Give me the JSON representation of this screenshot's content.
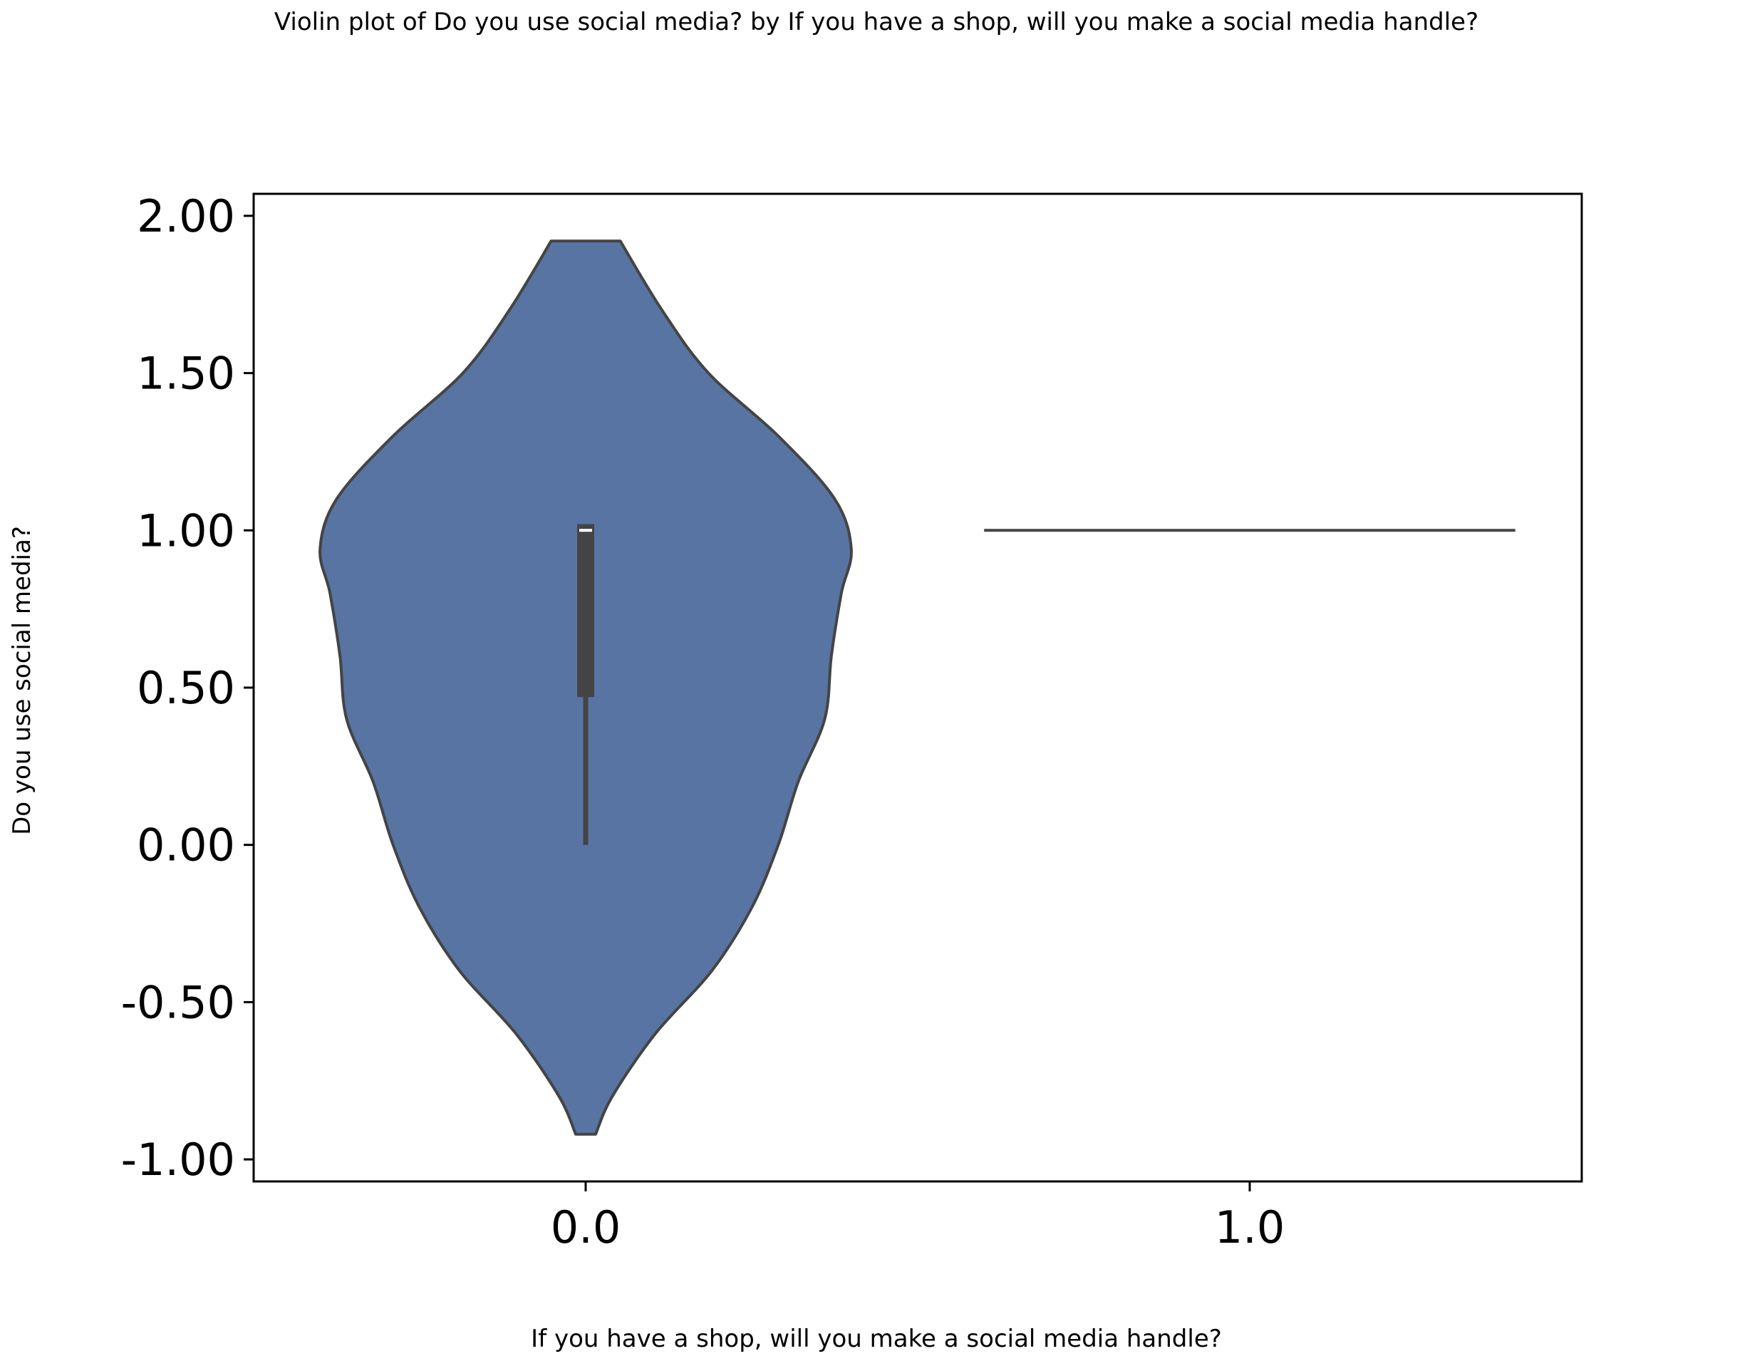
{
  "chart_data": {
    "type": "violin",
    "title": "Violin plot of Do you use social media? by If you have a shop, will you make a social media handle?",
    "xlabel": "If you have a shop, will you make a social media handle?",
    "ylabel": "Do you use social media?",
    "categories": [
      "0.0",
      "1.0"
    ],
    "yticks": [
      "-1.00",
      "-0.50",
      "0.00",
      "0.50",
      "1.00",
      "1.50",
      "2.00"
    ],
    "ylim": [
      -1.07,
      2.07
    ],
    "grid": false,
    "colors": {
      "violin_fill": "#5874a2",
      "outline": "#444444",
      "median": "#ffffff"
    },
    "violins": [
      {
        "category": "0.0",
        "kde_y": [
          -0.92,
          -0.8,
          -0.6,
          -0.4,
          -0.2,
          0.0,
          0.2,
          0.4,
          0.6,
          0.8,
          0.94,
          1.1,
          1.3,
          1.5,
          1.7,
          1.92
        ],
        "kde_halfwidth": [
          0.015,
          0.04,
          0.105,
          0.19,
          0.25,
          0.29,
          0.32,
          0.36,
          0.37,
          0.385,
          0.4,
          0.375,
          0.29,
          0.185,
          0.115,
          0.052
        ],
        "whisker": [
          0.0,
          1.0
        ],
        "box": [
          0.47,
          1.02
        ],
        "median": 1.0
      },
      {
        "category": "1.0",
        "constant_value": 1.0,
        "halfwidth": 0.4
      }
    ]
  }
}
